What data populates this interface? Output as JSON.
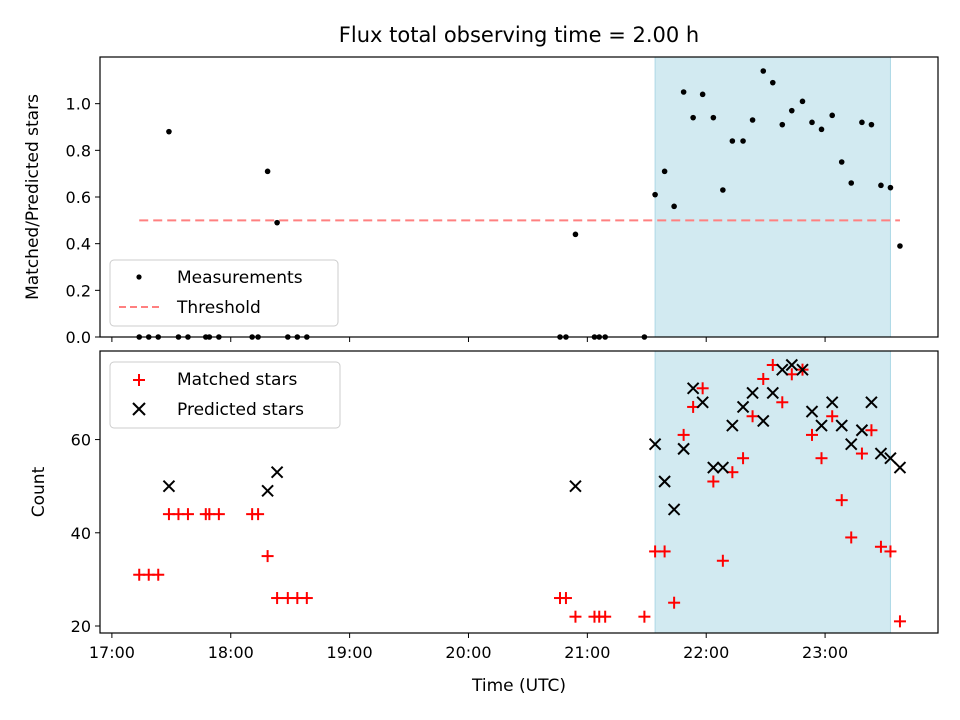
{
  "chart_data": [
    {
      "type": "scatter",
      "title": "Flux total observing time = 2.00 h",
      "xlabel": "",
      "ylabel": "Matched/Predicted stars",
      "xlim": [
        16.9,
        23.95
      ],
      "ylim": [
        0,
        1.2
      ],
      "yticks": [
        0.0,
        0.2,
        0.4,
        0.6,
        0.8,
        1.0
      ],
      "ytick_labels": [
        "0.0",
        "0.2",
        "0.4",
        "0.6",
        "0.8",
        "1.0"
      ],
      "shaded_region": {
        "x0": 21.57,
        "x1": 23.55,
        "color": "#add8e6"
      },
      "threshold": {
        "name": "Threshold",
        "y": 0.5,
        "x0": 17.23,
        "x1": 23.63,
        "color": "#ff8080"
      },
      "legend": [
        "Measurements",
        "Threshold"
      ],
      "series": [
        {
          "name": "Measurements",
          "marker": "dot",
          "color": "#000000",
          "x": [
            17.23,
            17.31,
            17.39,
            17.48,
            17.56,
            17.64,
            17.79,
            17.82,
            17.9,
            18.18,
            18.23,
            18.31,
            18.39,
            18.48,
            18.56,
            18.64,
            20.77,
            20.82,
            20.9,
            21.06,
            21.1,
            21.15,
            21.48,
            21.57,
            21.65,
            21.73,
            21.81,
            21.89,
            21.97,
            22.06,
            22.14,
            22.22,
            22.31,
            22.39,
            22.48,
            22.56,
            22.64,
            22.72,
            22.81,
            22.89,
            22.97,
            23.06,
            23.14,
            23.22,
            23.31,
            23.39,
            23.47,
            23.55,
            23.63
          ],
          "y": [
            0,
            0,
            0,
            0.88,
            0,
            0,
            0,
            0,
            0,
            0,
            0,
            0.71,
            0.49,
            0,
            0,
            0,
            0,
            0,
            0.44,
            0,
            0,
            0,
            0,
            0.61,
            0.71,
            0.56,
            1.05,
            0.94,
            1.04,
            0.94,
            0.63,
            0.84,
            0.84,
            0.93,
            1.14,
            1.09,
            0.91,
            0.97,
            1.01,
            0.92,
            0.89,
            0.95,
            0.75,
            0.66,
            0.92,
            0.91,
            0.65,
            0.64,
            0.39
          ]
        }
      ]
    },
    {
      "type": "scatter",
      "title": "",
      "xlabel": "Time (UTC)",
      "ylabel": "Count",
      "xlim": [
        16.9,
        23.95
      ],
      "ylim": [
        18.5,
        79
      ],
      "xticks": [
        17,
        18,
        19,
        20,
        21,
        22,
        23
      ],
      "xtick_labels": [
        "17:00",
        "18:00",
        "19:00",
        "20:00",
        "21:00",
        "22:00",
        "23:00"
      ],
      "yticks": [
        20,
        40,
        60
      ],
      "ytick_labels": [
        "20",
        "40",
        "60"
      ],
      "shaded_region": {
        "x0": 21.57,
        "x1": 23.55,
        "color": "#add8e6"
      },
      "legend": [
        "Matched stars",
        "Predicted stars"
      ],
      "series": [
        {
          "name": "Matched stars",
          "marker": "plus",
          "color": "#ff0000",
          "x": [
            17.23,
            17.31,
            17.39,
            17.48,
            17.56,
            17.64,
            17.79,
            17.82,
            17.9,
            18.18,
            18.23,
            18.31,
            18.39,
            18.48,
            18.56,
            18.64,
            20.77,
            20.82,
            20.9,
            21.06,
            21.1,
            21.15,
            21.48,
            21.57,
            21.65,
            21.73,
            21.81,
            21.89,
            21.97,
            22.06,
            22.14,
            22.22,
            22.31,
            22.39,
            22.48,
            22.56,
            22.64,
            22.72,
            22.81,
            22.89,
            22.97,
            23.06,
            23.14,
            23.22,
            23.31,
            23.39,
            23.47,
            23.55,
            23.63
          ],
          "y": [
            31,
            31,
            31,
            44,
            44,
            44,
            44,
            44,
            44,
            44,
            44,
            35,
            26,
            26,
            26,
            26,
            26,
            26,
            22,
            22,
            22,
            22,
            22,
            36,
            36,
            25,
            61,
            67,
            71,
            51,
            34,
            53,
            56,
            65,
            73,
            76,
            68,
            74,
            75,
            61,
            56,
            65,
            47,
            39,
            57,
            62,
            37,
            36,
            21
          ]
        },
        {
          "name": "Predicted stars",
          "marker": "x",
          "color": "#000000",
          "x": [
            17.48,
            18.31,
            18.39,
            20.9,
            21.57,
            21.65,
            21.73,
            21.81,
            21.89,
            21.97,
            22.06,
            22.14,
            22.22,
            22.31,
            22.39,
            22.48,
            22.56,
            22.64,
            22.72,
            22.81,
            22.89,
            22.97,
            23.06,
            23.14,
            23.22,
            23.31,
            23.39,
            23.47,
            23.55,
            23.63
          ],
          "y": [
            50,
            49,
            53,
            50,
            59,
            51,
            45,
            58,
            71,
            68,
            54,
            54,
            63,
            67,
            70,
            64,
            70,
            75,
            76,
            75,
            66,
            63,
            68,
            63,
            59,
            62,
            68,
            57,
            56,
            54
          ]
        }
      ]
    }
  ]
}
